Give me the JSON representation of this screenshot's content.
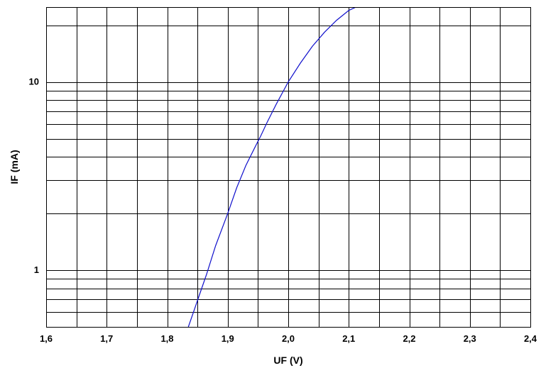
{
  "chart_data": {
    "type": "line",
    "title": "",
    "xlabel": "UF (V)",
    "ylabel": "IF (mA)",
    "x_scale": "linear",
    "y_scale": "log",
    "xlim": [
      1.6,
      2.4
    ],
    "ylim": [
      0.5,
      25
    ],
    "x_ticks": [
      "1,6",
      "1,7",
      "1,8",
      "1,9",
      "2,0",
      "2,1",
      "2,2",
      "2,3",
      "2,4"
    ],
    "x_minor_gridlines": [
      1.65,
      1.75,
      1.85,
      1.95,
      2.05,
      2.15,
      2.25,
      2.35
    ],
    "y_ticks": [
      {
        "value": 1,
        "label": "1"
      },
      {
        "value": 10,
        "label": "10"
      }
    ],
    "y_gridlines": [
      0.6,
      0.7,
      0.8,
      0.9,
      1,
      2,
      3,
      4,
      5,
      6,
      7,
      8,
      9,
      10,
      20
    ],
    "grid": true,
    "colors": {
      "series": "#1010cc",
      "grid": "#000000"
    },
    "series": [
      {
        "x": [
          1.835,
          1.845,
          1.852,
          1.865,
          1.88,
          1.9,
          1.915,
          1.93,
          1.945,
          1.955,
          1.965,
          1.98,
          2.0,
          2.02,
          2.04,
          2.06,
          2.08,
          2.1,
          2.112
        ],
        "y": [
          0.5,
          0.62,
          0.72,
          0.95,
          1.35,
          2.0,
          2.75,
          3.6,
          4.5,
          5.2,
          6.1,
          7.6,
          10.0,
          12.6,
          15.5,
          18.4,
          21.3,
          24.0,
          25.0
        ]
      }
    ]
  }
}
